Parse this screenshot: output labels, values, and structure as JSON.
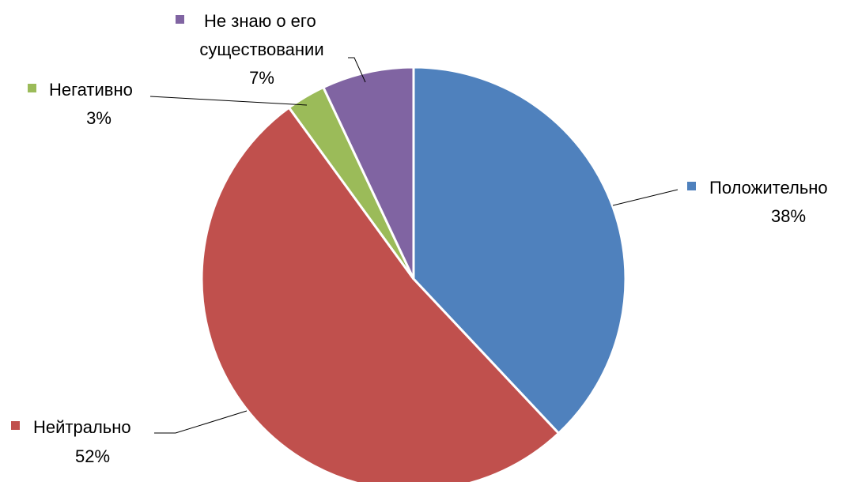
{
  "chart_data": {
    "type": "pie",
    "title": "",
    "start_angle_deg": 0,
    "direction": "clockwise",
    "slices": [
      {
        "label": "Положительно",
        "value": 38,
        "value_label": "38%",
        "color": "#4F81BD"
      },
      {
        "label": "Нейтрально",
        "value": 52,
        "value_label": "52%",
        "color": "#C0504D"
      },
      {
        "label": "Негативно",
        "value": 3,
        "value_label": "3%",
        "color": "#9BBB59"
      },
      {
        "label": "Не знаю о его",
        "label_line2": "существовании",
        "value": 7,
        "value_label": "7%",
        "color": "#8064A2"
      }
    ]
  }
}
